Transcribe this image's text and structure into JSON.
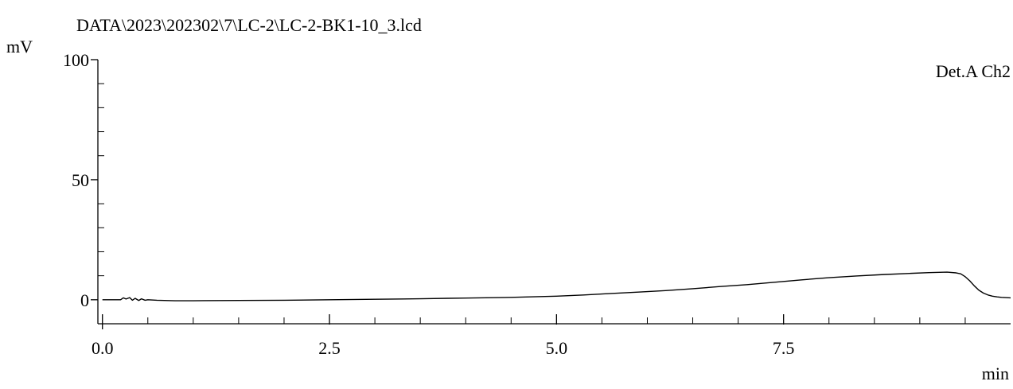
{
  "chart_data": {
    "type": "line",
    "title": "DATA\\2023\\202302\\7\\LC-2\\LC-2-BK1-10_3.lcd",
    "xlabel": "min",
    "ylabel": "mV",
    "xlim": [
      -0.05,
      10.0
    ],
    "ylim": [
      -10,
      100
    ],
    "x_ticks": [
      0.0,
      2.5,
      5.0,
      7.5
    ],
    "x_tick_labels": [
      "0.0",
      "2.5",
      "5.0",
      "7.5"
    ],
    "x_minor_step": 0.5,
    "y_ticks": [
      0,
      50,
      100
    ],
    "y_tick_labels": [
      "0",
      "50",
      "100"
    ],
    "y_minor_step": 10,
    "grid": false,
    "legend": "top-right",
    "series": [
      {
        "name": "Det.A Ch2",
        "color": "#000000",
        "x": [
          0.0,
          0.1,
          0.2,
          0.23,
          0.26,
          0.3,
          0.33,
          0.36,
          0.4,
          0.43,
          0.47,
          0.5,
          0.6,
          0.8,
          1.0,
          1.5,
          2.0,
          2.5,
          3.0,
          3.5,
          3.8,
          4.0,
          4.5,
          5.0,
          5.3,
          5.6,
          5.9,
          6.2,
          6.5,
          6.8,
          7.1,
          7.4,
          7.7,
          8.0,
          8.3,
          8.6,
          8.9,
          9.1,
          9.3,
          9.4,
          9.45,
          9.5,
          9.55,
          9.6,
          9.65,
          9.7,
          9.75,
          9.8,
          9.85,
          9.9,
          10.0
        ],
        "y": [
          0.0,
          0.0,
          0.0,
          0.8,
          0.3,
          0.9,
          -0.2,
          0.6,
          -0.3,
          0.4,
          -0.2,
          0.0,
          -0.2,
          -0.4,
          -0.4,
          -0.3,
          -0.2,
          0.0,
          0.2,
          0.4,
          0.6,
          0.7,
          1.0,
          1.5,
          2.0,
          2.6,
          3.2,
          3.8,
          4.6,
          5.5,
          6.3,
          7.3,
          8.3,
          9.2,
          9.9,
          10.5,
          11.0,
          11.3,
          11.5,
          11.2,
          10.8,
          9.6,
          7.9,
          5.8,
          4.0,
          2.8,
          2.0,
          1.5,
          1.2,
          1.0,
          0.8
        ]
      }
    ]
  }
}
